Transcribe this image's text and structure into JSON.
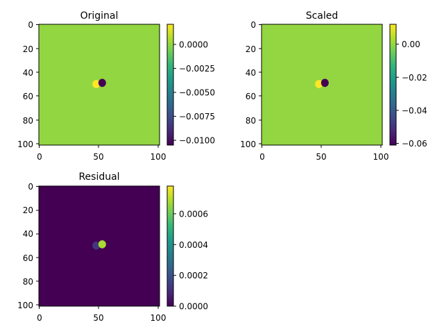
{
  "chart_data": [
    {
      "type": "heatmap",
      "title": "Original",
      "xlim": [
        0,
        101
      ],
      "ylim": [
        101,
        0
      ],
      "xticks": [
        "0",
        "50",
        "100"
      ],
      "yticks": [
        "0",
        "20",
        "40",
        "60",
        "80",
        "100"
      ],
      "background_value": 0.0,
      "colorbar": {
        "range": [
          -0.0105,
          0.0021
        ],
        "ticks": [
          "0.0000",
          "−0.0025",
          "−0.0050",
          "−0.0075",
          "−0.0100"
        ],
        "tick_values": [
          0.0,
          -0.0025,
          -0.005,
          -0.0075,
          -0.01
        ]
      },
      "features": [
        {
          "x": 48,
          "y": 50,
          "value": 0.0021
        },
        {
          "x": 53,
          "y": 49,
          "value": -0.0105
        }
      ]
    },
    {
      "type": "heatmap",
      "title": "Scaled",
      "xlim": [
        0,
        101
      ],
      "ylim": [
        101,
        0
      ],
      "xticks": [
        "0",
        "50",
        "100"
      ],
      "yticks": [
        "0",
        "20",
        "40",
        "60",
        "80",
        "100"
      ],
      "background_value": 0.0,
      "colorbar": {
        "range": [
          -0.061,
          0.012
        ],
        "ticks": [
          "0.00",
          "−0.02",
          "−0.04",
          "−0.06"
        ],
        "tick_values": [
          0.0,
          -0.02,
          -0.04,
          -0.06
        ]
      },
      "features": [
        {
          "x": 48,
          "y": 50,
          "value": 0.012
        },
        {
          "x": 53,
          "y": 49,
          "value": -0.061
        }
      ]
    },
    {
      "type": "heatmap",
      "title": "Residual",
      "xlim": [
        0,
        101
      ],
      "ylim": [
        101,
        0
      ],
      "xticks": [
        "0",
        "50",
        "100"
      ],
      "yticks": [
        "0",
        "20",
        "40",
        "60",
        "80",
        "100"
      ],
      "background_value": 0.0,
      "colorbar": {
        "range": [
          0.0,
          0.00078
        ],
        "ticks": [
          "0.0006",
          "0.0004",
          "0.0002",
          "0.0000"
        ],
        "tick_values": [
          0.0006,
          0.0004,
          0.0002,
          0.0
        ]
      },
      "features": [
        {
          "x": 48,
          "y": 50,
          "value": 0.00012
        },
        {
          "x": 53,
          "y": 49,
          "value": 0.00068
        }
      ]
    }
  ],
  "colors": {
    "viridis": [
      "#440154",
      "#482878",
      "#3e4989",
      "#31688e",
      "#26828e",
      "#1f9e89",
      "#35b779",
      "#6ece58",
      "#b5de2b",
      "#fde725"
    ]
  }
}
